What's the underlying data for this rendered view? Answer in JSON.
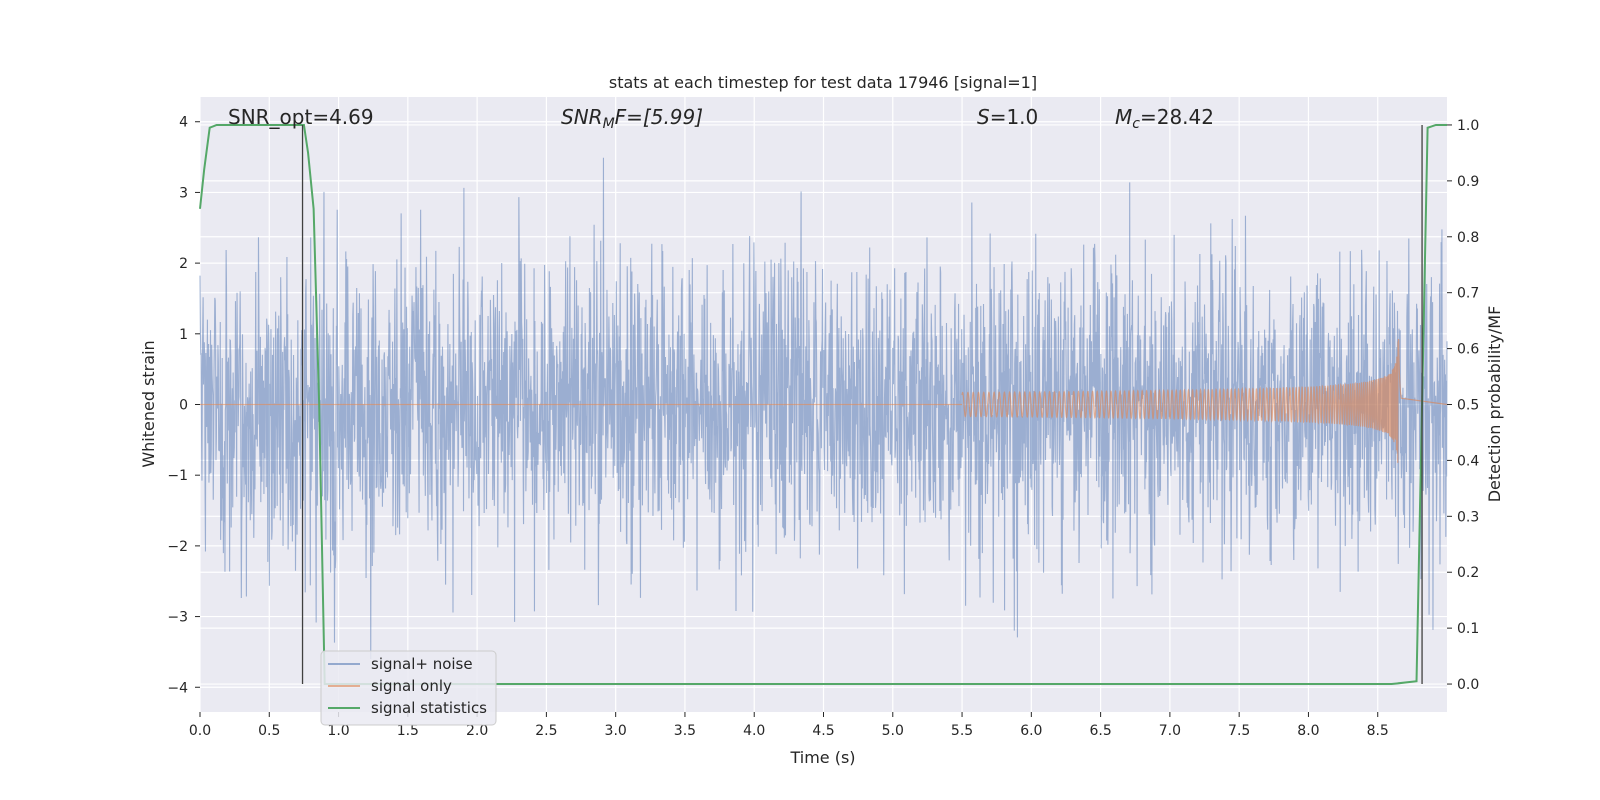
{
  "chart_data": {
    "type": "line",
    "title": "stats at each timestep for test data 17946 [signal=1]",
    "xlabel": "Time (s)",
    "ylabel_left": "Whitened strain",
    "ylabel_right": "Detection probability/MF",
    "xlim": [
      0.0,
      9.0
    ],
    "ylim_left": [
      -4.35,
      4.35
    ],
    "ylim_right": [
      -0.05,
      1.05
    ],
    "x_ticks": [
      0.0,
      0.5,
      1.0,
      1.5,
      2.0,
      2.5,
      3.0,
      3.5,
      4.0,
      4.5,
      5.0,
      5.5,
      6.0,
      6.5,
      7.0,
      7.5,
      8.0,
      8.5
    ],
    "x_tick_labels": [
      "0.0",
      "0.5",
      "1.0",
      "1.5",
      "2.0",
      "2.5",
      "3.0",
      "3.5",
      "4.0",
      "4.5",
      "5.0",
      "5.5",
      "6.0",
      "6.5",
      "7.0",
      "7.5",
      "8.0",
      "8.5"
    ],
    "y_left_ticks": [
      -4,
      -3,
      -2,
      -1,
      0,
      1,
      2,
      3,
      4
    ],
    "y_left_tick_labels": [
      "−4",
      "−3",
      "−2",
      "−1",
      "0",
      "1",
      "2",
      "3",
      "4"
    ],
    "y_right_ticks": [
      0.0,
      0.1,
      0.2,
      0.3,
      0.4,
      0.5,
      0.6,
      0.7,
      0.8,
      0.9,
      1.0
    ],
    "y_right_tick_labels": [
      "0.0",
      "0.1",
      "0.2",
      "0.3",
      "0.4",
      "0.5",
      "0.6",
      "0.7",
      "0.8",
      "0.9",
      "1.0"
    ],
    "grid": true,
    "legend_position": "lower-left",
    "colors": {
      "plot_background": "#eaeaf2",
      "grid": "#ffffff",
      "signal_noise": "#4c72b0",
      "signal_only": "#dd8452",
      "signal_statistics": "#55a868",
      "markers": "#404040"
    },
    "annotations": {
      "snr_opt": "SNR_opt=4.69",
      "snr_mf_base": "SNR",
      "snr_mf_sub": "M",
      "snr_mf_rest": "F=[5.99]",
      "s_sym": "S",
      "s_rest": "=1.0",
      "mc_sym": "M",
      "mc_sub": "c",
      "mc_rest": "=28.42"
    },
    "series": [
      {
        "name": "signal+ noise",
        "kind": "noise",
        "description": "whitened strain, roughly unit-variance noise spanning about -3.6 to 3.9",
        "y_range": [
          -3.6,
          3.9
        ]
      },
      {
        "name": "signal only",
        "kind": "chirp",
        "description": "chirp growing from ~0 near t=5.5 to peak amplitude ~1.0 at t=8.65",
        "start_t": 5.5,
        "merger_t": 8.65,
        "peak_amplitude": 1.0
      },
      {
        "name": "signal statistics",
        "kind": "probability",
        "x": [
          0.0,
          0.03,
          0.07,
          0.12,
          0.2,
          0.3,
          0.5,
          0.7,
          0.75,
          0.78,
          0.82,
          0.86,
          0.9,
          1.0,
          2.0,
          3.0,
          4.0,
          5.0,
          6.0,
          7.0,
          8.0,
          8.6,
          8.78,
          8.82,
          8.86,
          8.92,
          9.0
        ],
        "y": [
          0.85,
          0.92,
          0.995,
          1.0,
          1.0,
          1.0,
          1.0,
          1.0,
          1.0,
          0.95,
          0.85,
          0.5,
          0.0,
          0.0,
          0.0,
          0.0,
          0.0,
          0.0,
          0.0,
          0.0,
          0.0,
          0.0,
          0.005,
          0.5,
          0.995,
          1.0,
          1.0
        ]
      }
    ],
    "vertical_markers": [
      0.74,
      8.82
    ]
  }
}
